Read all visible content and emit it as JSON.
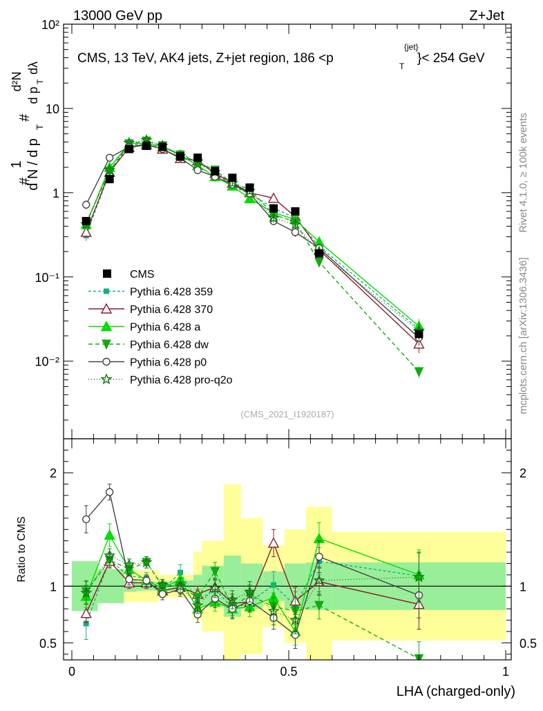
{
  "header": {
    "left": "13000 GeV pp",
    "right": "Z+Jet"
  },
  "side_labels": {
    "rivet": "Rivet 4.1.0, ≥ 100k events",
    "mcplots": "mcplots.cern.ch [arXiv:1306.3436]"
  },
  "ratio_ylabel": "Ratio to CMS",
  "chart_data": {
    "type": "scatter",
    "title": "CMS, 13 TeV, AK4 jets, Z+jet region, 186 < p_T^jet < 254 GeV",
    "title_parts": {
      "main": "CMS, 13 TeV, AK4 jets, Z+jet region, 186 <p",
      "sub": "T",
      "sup": "{jet}",
      "tail": "}< 254 GeV"
    },
    "analysis_tag": "(CMS_2021_I1920187)",
    "xlabel": "LHA (charged-only)",
    "ylabel": "1/dN/dpT dN^2/dpT dλ",
    "ylabel_parts": {
      "num": "1",
      "den": "d N / d p",
      "frac_num": "d²N",
      "frac_den": "d p",
      "sub": "T",
      "hash": "#",
      "lambda": "dλ"
    },
    "xlim": [
      0,
      1
    ],
    "ylim": [
      0.0012,
      100
    ],
    "yscale": "log",
    "ratio_ylim": [
      0.35,
      2.3
    ],
    "x_ticks": [
      "0",
      "0.5",
      "1"
    ],
    "y_ticks": [
      "10⁻²",
      "10⁻¹",
      "1",
      "10",
      "10²"
    ],
    "ratio_ticks": [
      "0.5",
      "1",
      "2"
    ],
    "bin_edges": [
      0,
      0.06,
      0.12,
      0.15,
      0.2,
      0.23,
      0.28,
      0.3,
      0.35,
      0.39,
      0.44,
      0.49,
      0.54,
      0.6,
      1.0
    ],
    "x": [
      0.033,
      0.087,
      0.132,
      0.172,
      0.209,
      0.25,
      0.29,
      0.33,
      0.37,
      0.41,
      0.465,
      0.515,
      0.57,
      0.8
    ],
    "data": {
      "name": "CMS",
      "values": [
        0.46,
        1.45,
        3.3,
        3.6,
        3.5,
        2.7,
        2.6,
        1.8,
        1.5,
        1.15,
        0.65,
        0.6,
        0.19,
        0.021
      ]
    },
    "band_inner": [
      0.22,
      0.15,
      0.05,
      0.04,
      0.04,
      0.05,
      0.1,
      0.18,
      0.27,
      0.2,
      0.13,
      0.2,
      0.21,
      0.21
    ],
    "band_outer": [
      0.2,
      0.14,
      0.14,
      0.14,
      0.1,
      0.1,
      0.3,
      0.4,
      0.9,
      0.6,
      0.36,
      0.5,
      0.7,
      0.48
    ],
    "series": [
      {
        "name": "Pythia 6.428 359",
        "color": "#1aaa88",
        "dash": "4,3",
        "marker": "square",
        "values": [
          0.31,
          1.73,
          3.6,
          3.9,
          3.4,
          2.95,
          2.25,
          1.75,
          1.2,
          0.97,
          0.66,
          0.5,
          0.23,
          0.024
        ],
        "ratio": [
          0.67,
          1.23,
          1.09,
          1.07,
          0.97,
          1.12,
          0.86,
          0.98,
          0.8,
          0.86,
          1.01,
          0.83,
          1.22,
          1.09
        ],
        "ratio_err": [
          0.14,
          0.07,
          0.05,
          0.05,
          0.05,
          0.07,
          0.07,
          0.08,
          0.09,
          0.09,
          0.12,
          0.12,
          0.12,
          0.2
        ]
      },
      {
        "name": "Pythia 6.428 370",
        "color": "#8a1a2a",
        "dash": "",
        "marker": "triangle-open",
        "values": [
          0.34,
          1.75,
          3.45,
          3.7,
          3.3,
          2.55,
          2.4,
          1.7,
          1.3,
          1.0,
          0.86,
          0.52,
          0.21,
          0.016
        ],
        "ratio": [
          0.76,
          1.22,
          1.03,
          1.03,
          0.96,
          0.99,
          0.93,
          0.99,
          0.85,
          0.86,
          1.38,
          0.87,
          1.04,
          0.84
        ],
        "ratio_err": [
          0.08,
          0.06,
          0.05,
          0.05,
          0.05,
          0.06,
          0.07,
          0.08,
          0.08,
          0.09,
          0.12,
          0.12,
          0.12,
          0.22
        ]
      },
      {
        "name": "Pythia 6.428 a",
        "color": "#00dd00",
        "dash": "",
        "marker": "triangle",
        "values": [
          0.42,
          2.0,
          3.8,
          3.9,
          3.5,
          2.8,
          2.1,
          1.55,
          1.2,
          0.85,
          0.58,
          0.48,
          0.26,
          0.026
        ],
        "ratio": [
          0.91,
          1.45,
          1.15,
          1.05,
          0.98,
          1.06,
          0.8,
          0.86,
          0.8,
          0.82,
          0.9,
          0.6,
          1.42,
          1.1
        ],
        "ratio_err": [
          0.1,
          0.1,
          0.05,
          0.05,
          0.05,
          0.07,
          0.07,
          0.08,
          0.08,
          0.09,
          0.12,
          0.12,
          0.14,
          0.22
        ]
      },
      {
        "name": "Pythia 6.428 dw",
        "color": "#11aa11",
        "dash": "6,4",
        "marker": "triangle-down",
        "values": [
          0.44,
          1.8,
          3.8,
          4.1,
          3.6,
          2.8,
          2.3,
          1.85,
          1.3,
          1.1,
          0.55,
          0.45,
          0.15,
          0.0075
        ],
        "ratio": [
          0.95,
          1.23,
          1.15,
          1.21,
          1.0,
          1.0,
          0.9,
          1.13,
          0.82,
          0.92,
          0.82,
          0.78,
          0.83,
          0.36
        ],
        "ratio_err": [
          0.1,
          0.06,
          0.05,
          0.05,
          0.05,
          0.07,
          0.07,
          0.08,
          0.08,
          0.09,
          0.12,
          0.12,
          0.12,
          0.15
        ]
      },
      {
        "name": "Pythia 6.428 p0",
        "color": "#444444",
        "dash": "",
        "marker": "circle-open",
        "values": [
          0.72,
          2.6,
          3.5,
          3.75,
          3.3,
          2.6,
          1.85,
          1.55,
          1.25,
          0.98,
          0.46,
          0.34,
          0.22,
          0.019
        ],
        "ratio": [
          1.59,
          1.83,
          1.06,
          1.05,
          0.93,
          0.97,
          0.75,
          0.89,
          0.8,
          0.87,
          0.72,
          0.57,
          1.26,
          0.92
        ],
        "ratio_err": [
          0.12,
          0.07,
          0.05,
          0.05,
          0.05,
          0.06,
          0.07,
          0.08,
          0.08,
          0.09,
          0.1,
          0.12,
          0.14,
          0.2
        ]
      },
      {
        "name": "Pythia 6.428 pro-q2o",
        "color": "#117711",
        "dash": "1,3",
        "marker": "star-open",
        "values": [
          0.42,
          1.85,
          3.9,
          4.2,
          3.6,
          2.7,
          2.35,
          1.75,
          1.3,
          1.05,
          0.5,
          0.42,
          0.2,
          0.023
        ],
        "ratio": [
          0.94,
          1.27,
          1.19,
          1.21,
          1.01,
          1.0,
          0.83,
          0.98,
          0.88,
          0.95,
          0.78,
          0.7,
          1.05,
          1.08
        ],
        "ratio_err": [
          0.1,
          0.06,
          0.05,
          0.05,
          0.05,
          0.07,
          0.07,
          0.08,
          0.08,
          0.09,
          0.12,
          0.12,
          0.12,
          0.22
        ]
      }
    ],
    "legend_position": "middle-left"
  }
}
